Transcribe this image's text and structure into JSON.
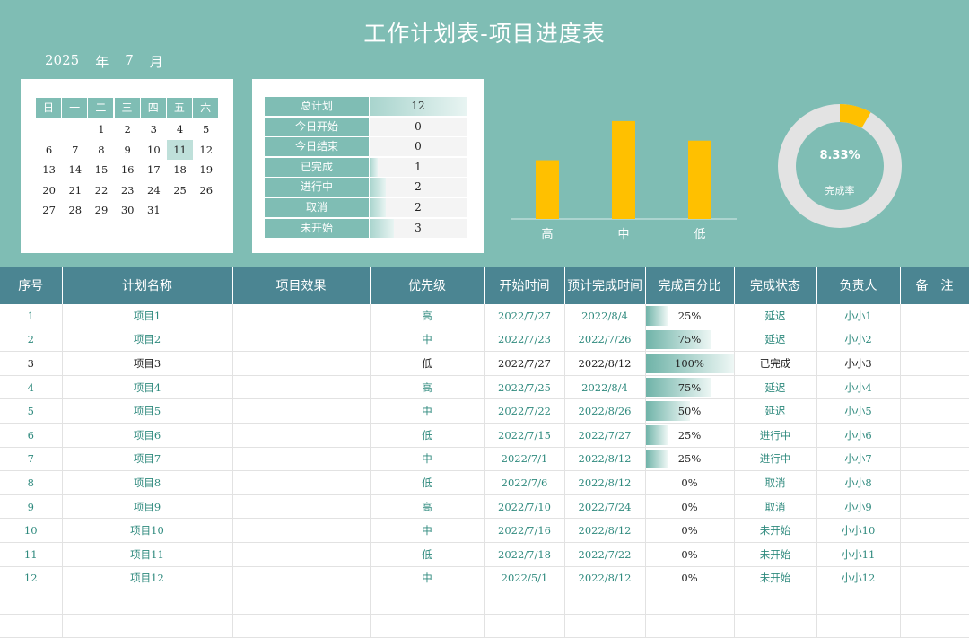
{
  "title": "工作计划表-项目进度表",
  "date": {
    "year": "2025",
    "year_unit": "年",
    "month": "7",
    "month_unit": "月"
  },
  "calendar": {
    "weekdays": [
      "日",
      "一",
      "二",
      "三",
      "四",
      "五",
      "六"
    ],
    "start_offset": 2,
    "days": [
      "1",
      "2",
      "3",
      "4",
      "5",
      "6",
      "7",
      "8",
      "9",
      "10",
      "11",
      "12",
      "13",
      "14",
      "15",
      "16",
      "17",
      "18",
      "19",
      "20",
      "21",
      "22",
      "23",
      "24",
      "25",
      "26",
      "27",
      "28",
      "29",
      "30",
      "31"
    ],
    "highlight_day": "11"
  },
  "stats": [
    {
      "label": "总计划",
      "value": "12",
      "ratio": 1.0
    },
    {
      "label": "今日开始",
      "value": "0",
      "ratio": 0
    },
    {
      "label": "今日结束",
      "value": "0",
      "ratio": 0
    },
    {
      "label": "已完成",
      "value": "1",
      "ratio": 0.0833
    },
    {
      "label": "进行中",
      "value": "2",
      "ratio": 0.1667
    },
    {
      "label": "取消",
      "value": "2",
      "ratio": 0.1667
    },
    {
      "label": "未开始",
      "value": "3",
      "ratio": 0.25
    }
  ],
  "chart_data": [
    {
      "type": "bar",
      "categories": [
        "高",
        "中",
        "低"
      ],
      "values": [
        3,
        5,
        4
      ],
      "ylim": [
        0,
        5.5
      ],
      "grid": false,
      "color": "#ffc000"
    },
    {
      "type": "pie",
      "donut": true,
      "values": [
        8.33,
        91.67
      ],
      "center_value": "8.33%",
      "center_label": "完成率",
      "colors": [
        "#ffc000",
        "#e3e3e3"
      ]
    }
  ],
  "table": {
    "headers": [
      "序号",
      "计划名称",
      "项目效果",
      "优先级",
      "开始时间",
      "预计完成时间",
      "完成百分比",
      "完成状态",
      "负责人",
      "备　注"
    ],
    "rows": [
      {
        "no": "1",
        "name": "项目1",
        "effect": "",
        "priority": "高",
        "start": "2022/7/27",
        "end": "2022/8/4",
        "pct": "25%",
        "pct_value": 0.25,
        "status": "延迟",
        "owner": "小小1",
        "note": ""
      },
      {
        "no": "2",
        "name": "项目2",
        "effect": "",
        "priority": "中",
        "start": "2022/7/23",
        "end": "2022/7/26",
        "pct": "75%",
        "pct_value": 0.75,
        "status": "延迟",
        "owner": "小小2",
        "note": ""
      },
      {
        "no": "3",
        "name": "项目3",
        "effect": "",
        "priority": "低",
        "start": "2022/7/27",
        "end": "2022/8/12",
        "pct": "100%",
        "pct_value": 1.0,
        "status": "已完成",
        "owner": "小小3",
        "note": ""
      },
      {
        "no": "4",
        "name": "项目4",
        "effect": "",
        "priority": "高",
        "start": "2022/7/25",
        "end": "2022/8/4",
        "pct": "75%",
        "pct_value": 0.75,
        "status": "延迟",
        "owner": "小小4",
        "note": ""
      },
      {
        "no": "5",
        "name": "项目5",
        "effect": "",
        "priority": "中",
        "start": "2022/7/22",
        "end": "2022/8/26",
        "pct": "50%",
        "pct_value": 0.5,
        "status": "延迟",
        "owner": "小小5",
        "note": ""
      },
      {
        "no": "6",
        "name": "项目6",
        "effect": "",
        "priority": "低",
        "start": "2022/7/15",
        "end": "2022/7/27",
        "pct": "25%",
        "pct_value": 0.25,
        "status": "进行中",
        "owner": "小小6",
        "note": ""
      },
      {
        "no": "7",
        "name": "项目7",
        "effect": "",
        "priority": "中",
        "start": "2022/7/1",
        "end": "2022/8/12",
        "pct": "25%",
        "pct_value": 0.25,
        "status": "进行中",
        "owner": "小小7",
        "note": ""
      },
      {
        "no": "8",
        "name": "项目8",
        "effect": "",
        "priority": "低",
        "start": "2022/7/6",
        "end": "2022/8/12",
        "pct": "0%",
        "pct_value": 0,
        "status": "取消",
        "owner": "小小8",
        "note": ""
      },
      {
        "no": "9",
        "name": "项目9",
        "effect": "",
        "priority": "高",
        "start": "2022/7/10",
        "end": "2022/7/24",
        "pct": "0%",
        "pct_value": 0,
        "status": "取消",
        "owner": "小小9",
        "note": ""
      },
      {
        "no": "10",
        "name": "项目10",
        "effect": "",
        "priority": "中",
        "start": "2022/7/16",
        "end": "2022/8/12",
        "pct": "0%",
        "pct_value": 0,
        "status": "未开始",
        "owner": "小小10",
        "note": ""
      },
      {
        "no": "11",
        "name": "项目11",
        "effect": "",
        "priority": "低",
        "start": "2022/7/18",
        "end": "2022/7/22",
        "pct": "0%",
        "pct_value": 0,
        "status": "未开始",
        "owner": "小小11",
        "note": ""
      },
      {
        "no": "12",
        "name": "项目12",
        "effect": "",
        "priority": "中",
        "start": "2022/5/1",
        "end": "2022/8/12",
        "pct": "0%",
        "pct_value": 0,
        "status": "未开始",
        "owner": "小小12",
        "note": ""
      }
    ]
  }
}
